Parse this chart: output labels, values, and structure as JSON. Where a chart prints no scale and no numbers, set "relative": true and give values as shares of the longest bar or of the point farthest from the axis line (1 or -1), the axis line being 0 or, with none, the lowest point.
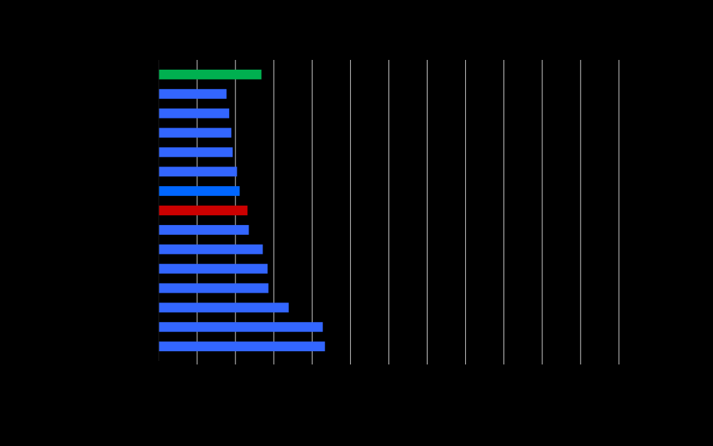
{
  "chart_data": {
    "type": "bar",
    "orientation": "horizontal",
    "relative": true,
    "grid": "x",
    "categories": [
      null,
      null,
      null,
      null,
      null,
      null,
      null,
      null,
      null,
      null,
      null,
      null,
      null,
      null,
      null
    ],
    "values": [
      0.618,
      0.408,
      0.424,
      0.437,
      0.445,
      0.471,
      0.487,
      0.534,
      0.542,
      0.626,
      0.655,
      0.66,
      0.782,
      0.987,
      1
    ],
    "colors": [
      "#00b050",
      "#3366ff",
      "#3366ff",
      "#3366ff",
      "#3366ff",
      "#3366ff",
      "#0066ff",
      "#cc0000",
      "#3366ff",
      "#3366ff",
      "#3366ff",
      "#3366ff",
      "#3366ff",
      "#3366ff",
      "#3366ff"
    ]
  }
}
